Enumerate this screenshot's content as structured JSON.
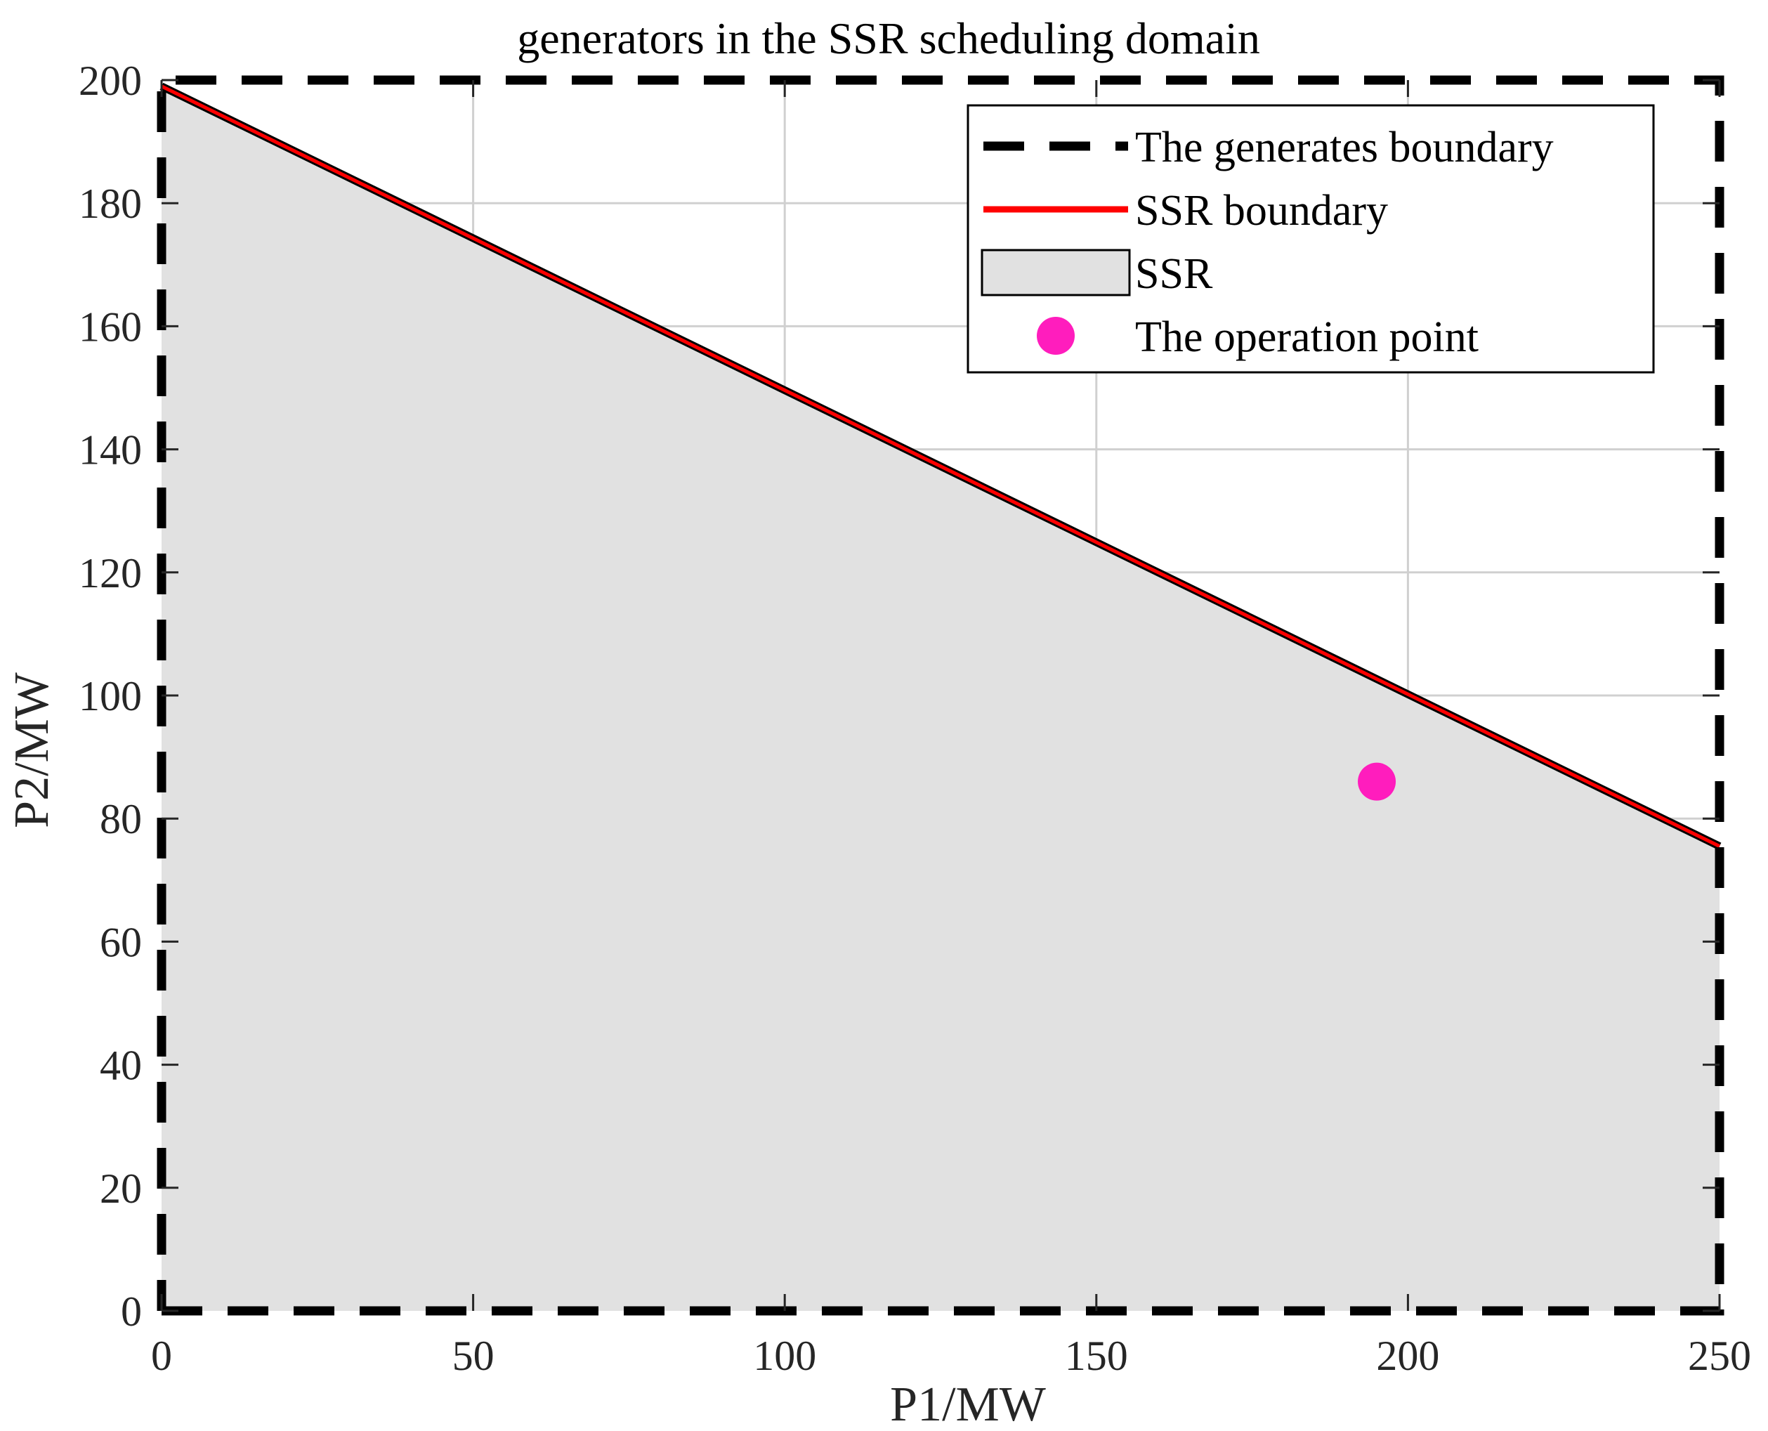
{
  "chart_data": {
    "type": "area",
    "title": "generators in the SSR scheduling domain",
    "xlabel": "P1/MW",
    "ylabel": "P2/MW",
    "xlim": [
      0,
      250
    ],
    "ylim": [
      0,
      200
    ],
    "xticks": [
      0,
      50,
      100,
      150,
      200,
      250
    ],
    "yticks": [
      0,
      20,
      40,
      60,
      80,
      100,
      120,
      140,
      160,
      180,
      200
    ],
    "grid": true,
    "legend_position": "top-right",
    "series": [
      {
        "name": "The generates boundary",
        "kind": "dashed-line",
        "color": "#000000",
        "x": [
          0,
          250,
          250,
          0,
          0
        ],
        "y": [
          0,
          0,
          200,
          200,
          0
        ]
      },
      {
        "name": "SSR boundary",
        "kind": "line",
        "color": "#ff0000",
        "x": [
          0,
          250
        ],
        "y": [
          199,
          75.5
        ]
      },
      {
        "name": "SSR",
        "kind": "filled-region",
        "color": "#e1e1e1",
        "x": [
          0,
          250,
          250,
          0
        ],
        "y": [
          199,
          75.5,
          0,
          0
        ]
      },
      {
        "name": "The operation point",
        "kind": "marker",
        "color": "#ff1dbd",
        "x": [
          195
        ],
        "y": [
          86
        ]
      }
    ]
  }
}
